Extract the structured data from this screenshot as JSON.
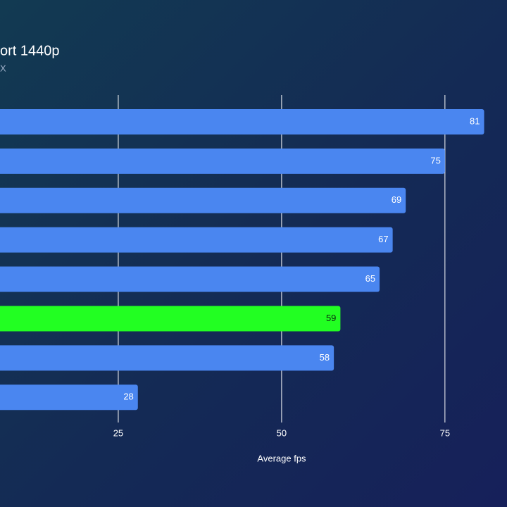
{
  "chart_data": {
    "type": "barh",
    "title": "ort 1440p",
    "subtitle": "X",
    "x_label": "Average fps",
    "categories": [
      null,
      null,
      null,
      null,
      null,
      null,
      null,
      null
    ],
    "values": [
      81,
      75,
      69,
      67,
      65,
      59,
      58,
      28
    ],
    "colors": [
      "#4a86f0",
      "#4a86f0",
      "#4a86f0",
      "#4a86f0",
      "#4a86f0",
      "#22ff22",
      "#4a86f0",
      "#4a86f0"
    ],
    "xlim": [
      0,
      84.5
    ],
    "xticks": [
      25,
      50,
      75
    ],
    "grid": true
  }
}
